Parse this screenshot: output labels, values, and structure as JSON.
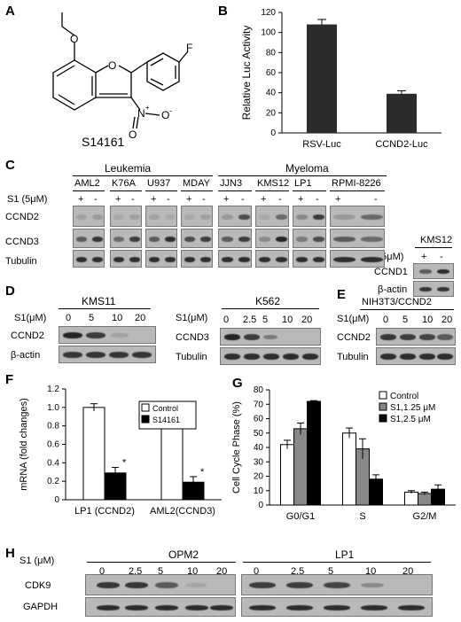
{
  "panels": {
    "A": "A",
    "B": "B",
    "C": "C",
    "D": "D",
    "E": "E",
    "F": "F",
    "G": "G",
    "H": "H"
  },
  "panelA": {
    "compound_name": "S14161",
    "atom_F": "F",
    "atom_O": "O",
    "atom_N": "N",
    "nitro_charge": "+",
    "oxide": "O",
    "oxide_charge": "-"
  },
  "panelC": {
    "groups": [
      "Leukemia",
      "Myeloma"
    ],
    "cell_lines": [
      "AML2",
      "K76A",
      "U937",
      "MDAY",
      "JJN3",
      "KMS12",
      "LP1",
      "RPMI-8226"
    ],
    "treatment_label": "S1 (5μM)",
    "signs": [
      "+",
      "-"
    ],
    "rows": [
      "CCND2",
      "CCND3",
      "Tubulin"
    ],
    "inset_cell_line": "KMS12",
    "inset_treatment": "S1 (5μM)",
    "inset_rows": [
      "CCND1",
      "β-actin"
    ]
  },
  "panelD": {
    "left": {
      "cell_line": "KMS11",
      "dose_label": "S1(μM)",
      "doses": [
        "0",
        "5",
        "10",
        "20"
      ],
      "rows": [
        "CCND2",
        "β-actin"
      ]
    },
    "right": {
      "cell_line": "K562",
      "dose_label": "S1(μM)",
      "doses": [
        "0",
        "2.5",
        "5",
        "10",
        "20"
      ],
      "rows": [
        "CCND3",
        "Tubulin"
      ]
    }
  },
  "panelE": {
    "cell_line": "NIH3T3/CCND2",
    "dose_label": "S1(μM)",
    "doses": [
      "0",
      "5",
      "10",
      "20"
    ],
    "rows": [
      "CCND2",
      "Tubulin"
    ]
  },
  "panelH": {
    "dose_label": "S1 (μM)",
    "groups": [
      {
        "name": "OPM2",
        "doses": [
          "0",
          "2.5",
          "5",
          "10",
          "20"
        ]
      },
      {
        "name": "LP1",
        "doses": [
          "0",
          "2.5",
          "5",
          "10",
          "20"
        ]
      }
    ],
    "rows": [
      "CDK9",
      "GAPDH"
    ]
  },
  "chart_data": [
    {
      "panel": "B",
      "type": "bar",
      "categories": [
        "RSV-Luc",
        "CCND2-Luc"
      ],
      "values": [
        108,
        39
      ],
      "errors": [
        5,
        3
      ],
      "ylabel": "Relative Luc Activity",
      "ylim": [
        0,
        120
      ],
      "yticks": [
        0,
        20,
        40,
        60,
        80,
        100,
        120
      ],
      "color": "#2b2b2b"
    },
    {
      "panel": "F",
      "type": "bar",
      "categories": [
        "LP1 (CCND2)",
        "AML2(CCND3)"
      ],
      "series": [
        {
          "name": "Control",
          "values": [
            1.0,
            1.0
          ],
          "errors": [
            0.04,
            0.04
          ],
          "color": "#ffffff"
        },
        {
          "name": "S14161",
          "values": [
            0.29,
            0.19
          ],
          "errors": [
            0.06,
            0.06
          ],
          "color": "#000000"
        }
      ],
      "significance": [
        "*",
        "*"
      ],
      "ylabel": "mRNA (fold changes)",
      "ylim": [
        0,
        1.2
      ],
      "yticks": [
        "0",
        "0.2",
        "0.4",
        "0.6",
        "0.8",
        "1.0",
        "1.2"
      ],
      "legend": "top-right"
    },
    {
      "panel": "G",
      "type": "bar",
      "categories": [
        "G0/G1",
        "S",
        "G2/M"
      ],
      "series": [
        {
          "name": "Control",
          "values": [
            42,
            50,
            9
          ],
          "errors": [
            3,
            3.5,
            1
          ],
          "color": "#ffffff"
        },
        {
          "name": "S1,1.25 μM",
          "values": [
            53,
            39,
            8
          ],
          "errors": [
            4,
            7,
            1
          ],
          "color": "#888888"
        },
        {
          "name": "S1,2.5 μM",
          "values": [
            72,
            18,
            11
          ],
          "errors": [
            0.5,
            3,
            3
          ],
          "color": "#000000"
        }
      ],
      "ylabel": "Cell Cycle Phase (%)",
      "ylim": [
        0,
        80
      ],
      "yticks": [
        0,
        10,
        20,
        30,
        40,
        50,
        60,
        70,
        80
      ],
      "legend": "top-right"
    }
  ]
}
